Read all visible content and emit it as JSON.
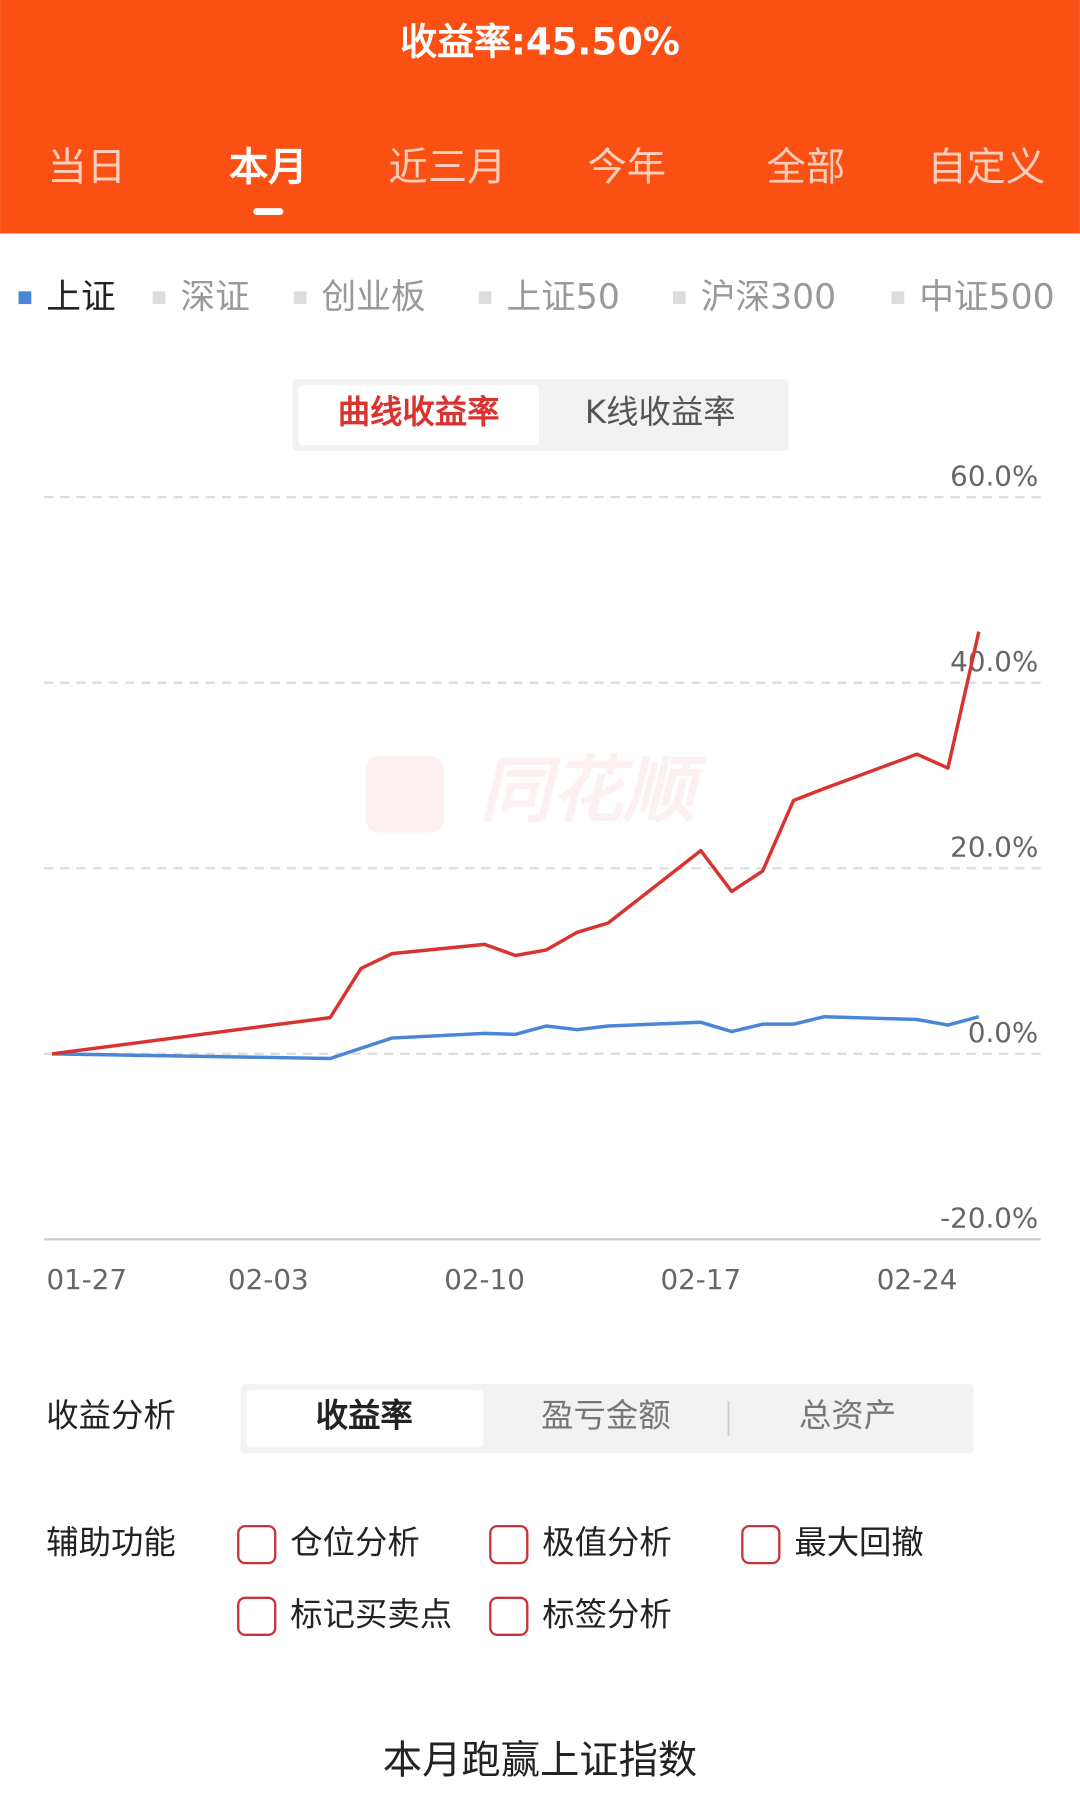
{
  "header": {
    "title": "收益率:45.50%",
    "tabs": [
      "当日",
      "本月",
      "近三月",
      "今年",
      "全部",
      "自定义"
    ],
    "selected_tab": 1
  },
  "indices": {
    "items": [
      "上证",
      "深证",
      "创业板",
      "上证50",
      "沪深300",
      "中证500"
    ],
    "selected": 0
  },
  "chart_toggle": {
    "options": [
      "曲线收益率",
      "K线收益率"
    ],
    "selected": 0
  },
  "chart_data": {
    "type": "line",
    "watermark": "同花顺",
    "x": [
      "01-27",
      "02-05",
      "02-06",
      "02-07",
      "02-10",
      "02-11",
      "02-12",
      "02-13",
      "02-14",
      "02-17",
      "02-18",
      "02-19",
      "02-20",
      "02-21",
      "02-24",
      "02-25",
      "02-26"
    ],
    "series": [
      {
        "color": "#d9332f",
        "values": [
          0,
          3.9,
          9.2,
          10.8,
          11.8,
          10.6,
          11.2,
          13.1,
          14.1,
          21.9,
          17.5,
          19.7,
          27.3,
          28.6,
          32.3,
          30.8,
          45.5
        ]
      },
      {
        "name": "上证",
        "color": "#4a86d8",
        "values": [
          0,
          -0.5,
          0.6,
          1.7,
          2.2,
          2.1,
          3.0,
          2.6,
          3.0,
          3.4,
          2.4,
          3.2,
          3.2,
          4.0,
          3.7,
          3.1,
          4.0
        ]
      }
    ],
    "xlim": [
      "01-27",
      "02-28"
    ],
    "xticks": [
      "01-27",
      "02-03",
      "02-10",
      "02-17",
      "02-24"
    ],
    "ylim": [
      -20,
      60
    ],
    "yticks": [
      {
        "value": -20,
        "label": "-20.0%"
      },
      {
        "value": 0,
        "label": "0.0%"
      },
      {
        "value": 20,
        "label": "20.0%"
      },
      {
        "value": 40,
        "label": "40.0%"
      },
      {
        "value": 60,
        "label": "60.0%"
      }
    ],
    "grid": true
  },
  "analysis": {
    "label": "收益分析",
    "options": [
      "收益率",
      "盈亏金额",
      "总资产"
    ],
    "selected": 0
  },
  "aux": {
    "label": "辅助功能",
    "options": [
      "仓位分析",
      "极值分析",
      "最大回撤",
      "标记买卖点",
      "标签分析"
    ]
  },
  "footer": {
    "text": "本月跑赢上证指数"
  }
}
